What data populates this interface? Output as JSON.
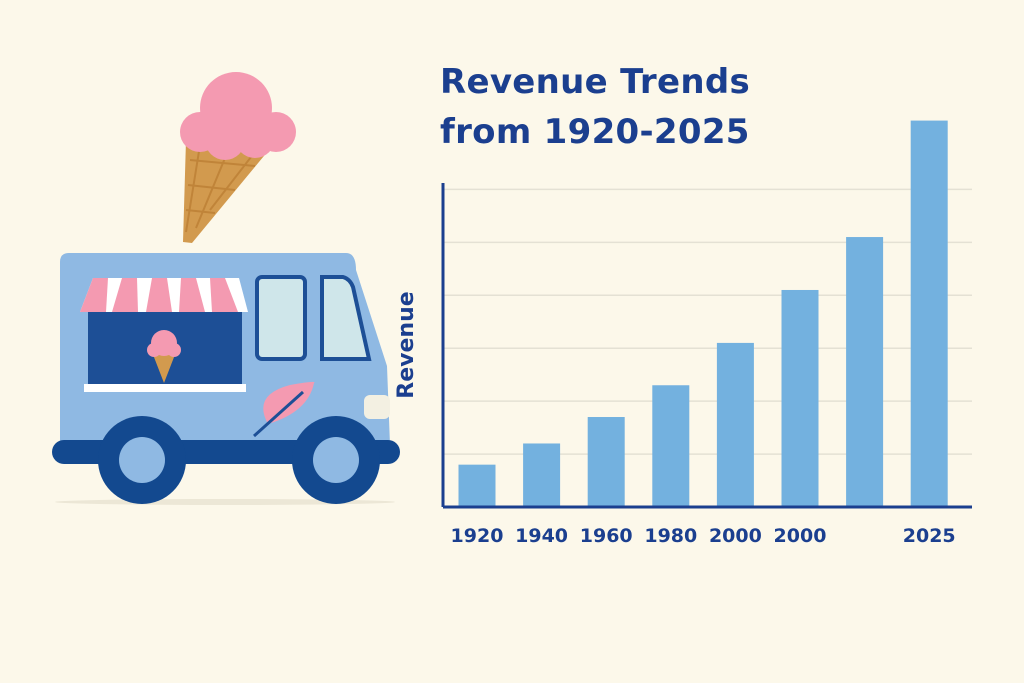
{
  "colors": {
    "background": "#fcf8ea",
    "bar": "#73b1df",
    "axis": "#1b3f8f",
    "grid": "#e4e1d4",
    "truck_body": "#8fb9e3",
    "truck_window": "#1d4f96",
    "wheel": "#13498f",
    "ice_cream": "#f49ab1",
    "cone": "#d29a4e"
  },
  "illustration": {
    "icons": [
      "ice-cream-cone-icon",
      "ice-cream-truck-icon",
      "leaf-icon"
    ]
  },
  "chart_data": {
    "type": "bar",
    "title_lines": [
      "Revenue Trends",
      "from 1920-2025"
    ],
    "xlabel": "",
    "ylabel": "Revenue",
    "categories": [
      "1920",
      "1940",
      "1960",
      "1980",
      "2000",
      "2000",
      "",
      "2025"
    ],
    "values": [
      0.8,
      1.2,
      1.7,
      2.3,
      3.1,
      4.1,
      5.1,
      7.3
    ],
    "ylim": [
      0,
      7.5
    ],
    "grid": true,
    "legend": "none"
  }
}
